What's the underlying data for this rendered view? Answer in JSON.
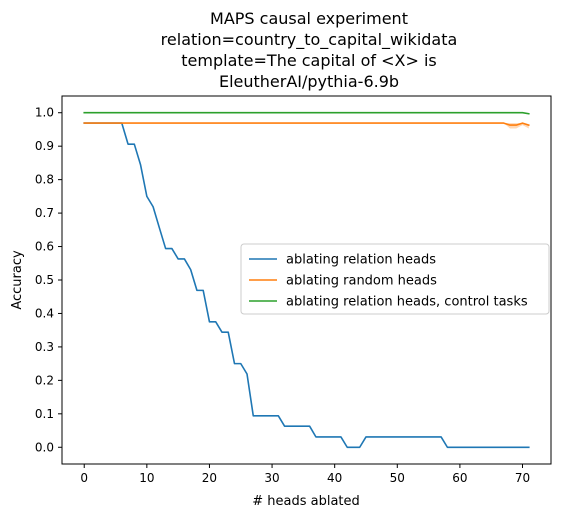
{
  "chart_data": {
    "type": "line",
    "title_lines": [
      "MAPS causal experiment",
      "relation=country_to_capital_wikidata",
      "template=The capital of <X> is",
      "EleutherAI/pythia-6.9b"
    ],
    "xlabel": "# heads ablated",
    "ylabel": "Accuracy",
    "xlim": [
      -3.55,
      74.55
    ],
    "ylim": [
      -0.05,
      1.05
    ],
    "xticks": [
      0,
      10,
      20,
      30,
      40,
      50,
      60,
      70
    ],
    "yticks": [
      0.0,
      0.1,
      0.2,
      0.3,
      0.4,
      0.5,
      0.6,
      0.7,
      0.8,
      0.9,
      1.0
    ],
    "ytick_labels": [
      "0.0",
      "0.1",
      "0.2",
      "0.3",
      "0.4",
      "0.5",
      "0.6",
      "0.7",
      "0.8",
      "0.9",
      "1.0"
    ],
    "grid": false,
    "legend_position": "center-right",
    "series": [
      {
        "name": "ablating relation heads",
        "color": "#1f77b4",
        "x": [
          0,
          6,
          7,
          8,
          9,
          10,
          11,
          12,
          13,
          14,
          15,
          16,
          17,
          18,
          19,
          20,
          21,
          22,
          23,
          24,
          25,
          26,
          27,
          28,
          31,
          32,
          36,
          37,
          41,
          42,
          44,
          45,
          57,
          58,
          71
        ],
        "y": [
          0.969,
          0.969,
          0.906,
          0.906,
          0.844,
          0.75,
          0.719,
          0.656,
          0.594,
          0.594,
          0.563,
          0.563,
          0.531,
          0.469,
          0.469,
          0.375,
          0.375,
          0.344,
          0.344,
          0.25,
          0.25,
          0.219,
          0.094,
          0.094,
          0.094,
          0.063,
          0.063,
          0.031,
          0.031,
          0.0,
          0.0,
          0.031,
          0.031,
          0.0,
          0.0
        ]
      },
      {
        "name": "ablating random heads",
        "color": "#ff7f0e",
        "x": [
          0,
          66,
          67,
          68,
          69,
          70,
          71
        ],
        "y": [
          0.969,
          0.969,
          0.969,
          0.963,
          0.963,
          0.969,
          0.963
        ],
        "band_upper": [
          0.969,
          0.969,
          0.969,
          0.969,
          0.969,
          0.969,
          0.966
        ],
        "band_lower": [
          0.969,
          0.969,
          0.969,
          0.953,
          0.953,
          0.963,
          0.953
        ]
      },
      {
        "name": "ablating relation heads, control tasks",
        "color": "#2ca02c",
        "x": [
          0,
          70,
          71
        ],
        "y": [
          1.0,
          1.0,
          0.997
        ]
      }
    ]
  }
}
